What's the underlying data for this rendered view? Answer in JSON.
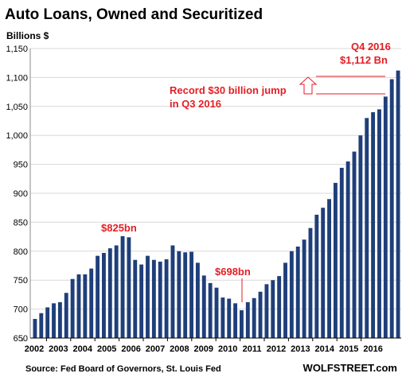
{
  "title": "Auto Loans, Owned and Securitized",
  "colors": {
    "bar": "#1f3f7a",
    "accent": "#e31e24",
    "grid": "#d8d8d8",
    "axis": "#000000"
  },
  "source": "Source: Fed Board of Governors, St. Louis Fed",
  "brand": "WOLFSTREET.com",
  "chart_data": {
    "type": "bar",
    "ylabel": "Billions $",
    "ylim": [
      650,
      1150
    ],
    "yticks": [
      "1,150",
      "1,100",
      "1,050",
      "1,000",
      "950",
      "900",
      "850",
      "800",
      "750",
      "700",
      "650"
    ],
    "ytick_values": [
      1150,
      1100,
      1050,
      1000,
      950,
      900,
      850,
      800,
      750,
      700,
      650
    ],
    "xticks": [
      "2002",
      "2003",
      "2004",
      "2005",
      "2006",
      "2007",
      "2008",
      "2009",
      "2010",
      "2011",
      "2012",
      "2013",
      "2014",
      "2015",
      "2016"
    ],
    "grid": true,
    "values": [
      683,
      693,
      703,
      710,
      712,
      728,
      752,
      760,
      760,
      770,
      792,
      797,
      805,
      810,
      826,
      824,
      785,
      777,
      792,
      785,
      782,
      786,
      810,
      800,
      798,
      799,
      780,
      758,
      745,
      737,
      720,
      718,
      710,
      698,
      712,
      719,
      730,
      743,
      750,
      757,
      780,
      800,
      808,
      820,
      840,
      863,
      875,
      890,
      918,
      944,
      955,
      972,
      1000,
      1030,
      1040,
      1045,
      1067,
      1097,
      1112
    ],
    "annotations": [
      {
        "text": "$825bn"
      },
      {
        "text": "$698bn"
      },
      {
        "text": "Record $30 billion jump"
      },
      {
        "text": "in Q3 2016"
      },
      {
        "text": "Q4 2016"
      },
      {
        "text": "$1,112 Bn"
      }
    ]
  }
}
